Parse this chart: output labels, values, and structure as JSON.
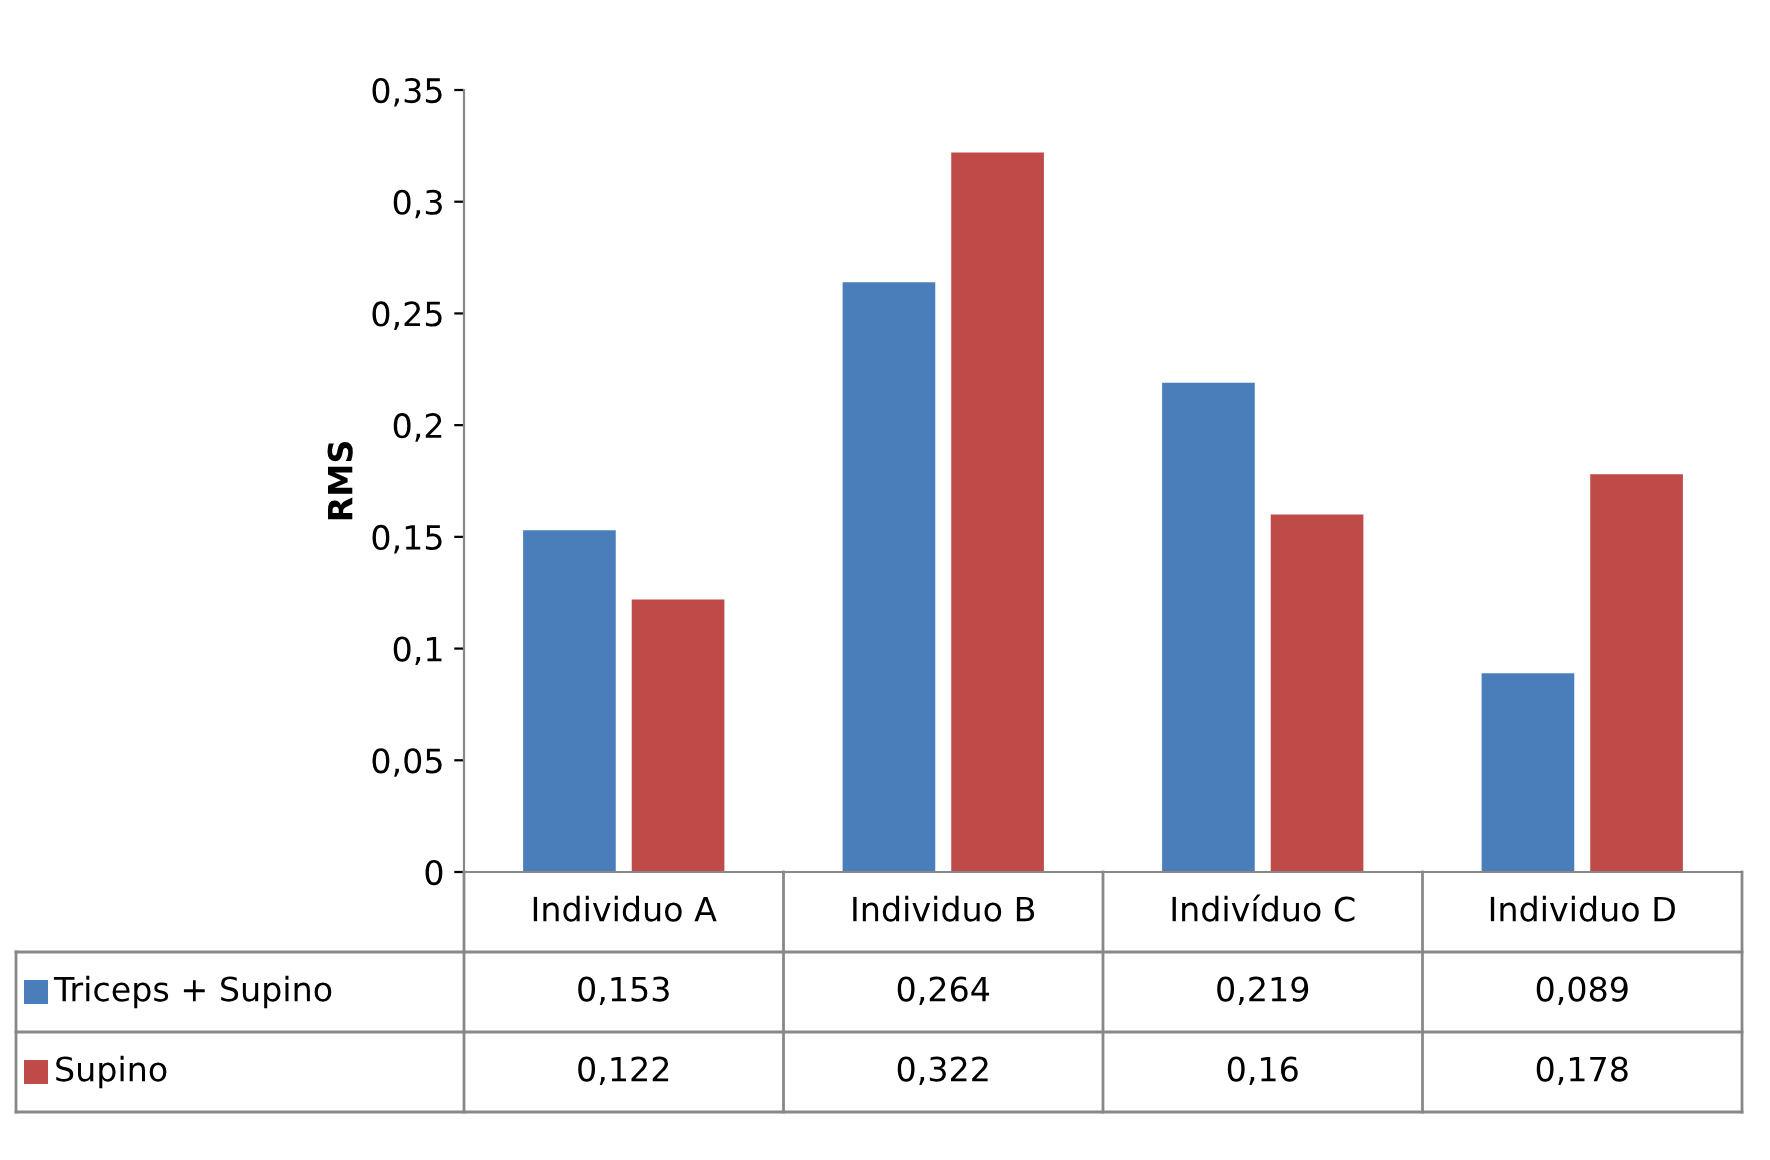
{
  "chart_data": {
    "type": "bar",
    "ylabel": "RMS",
    "categories": [
      "Individuo A",
      "Individuo B",
      "Indivíduo C",
      "Individuo D"
    ],
    "series": [
      {
        "name": "Triceps + Supino",
        "color": "#4a7ebb",
        "values": [
          0.153,
          0.264,
          0.219,
          0.089
        ],
        "value_labels": [
          "0,153",
          "0,264",
          "0,219",
          "0,089"
        ]
      },
      {
        "name": "Supino",
        "color": "#be4b48",
        "values": [
          0.122,
          0.322,
          0.16,
          0.178
        ],
        "value_labels": [
          "0,122",
          "0,322",
          "0,16",
          "0,178"
        ]
      }
    ],
    "ylim": [
      0,
      0.35
    ],
    "yticks": [
      {
        "value": 0,
        "label": "0"
      },
      {
        "value": 0.05,
        "label": "0,05"
      },
      {
        "value": 0.1,
        "label": "0,1"
      },
      {
        "value": 0.15,
        "label": "0,15"
      },
      {
        "value": 0.2,
        "label": "0,2"
      },
      {
        "value": 0.25,
        "label": "0,25"
      },
      {
        "value": 0.3,
        "label": "0,3"
      },
      {
        "value": 0.35,
        "label": "0,35"
      }
    ],
    "grid": false,
    "legend": "bottom"
  }
}
